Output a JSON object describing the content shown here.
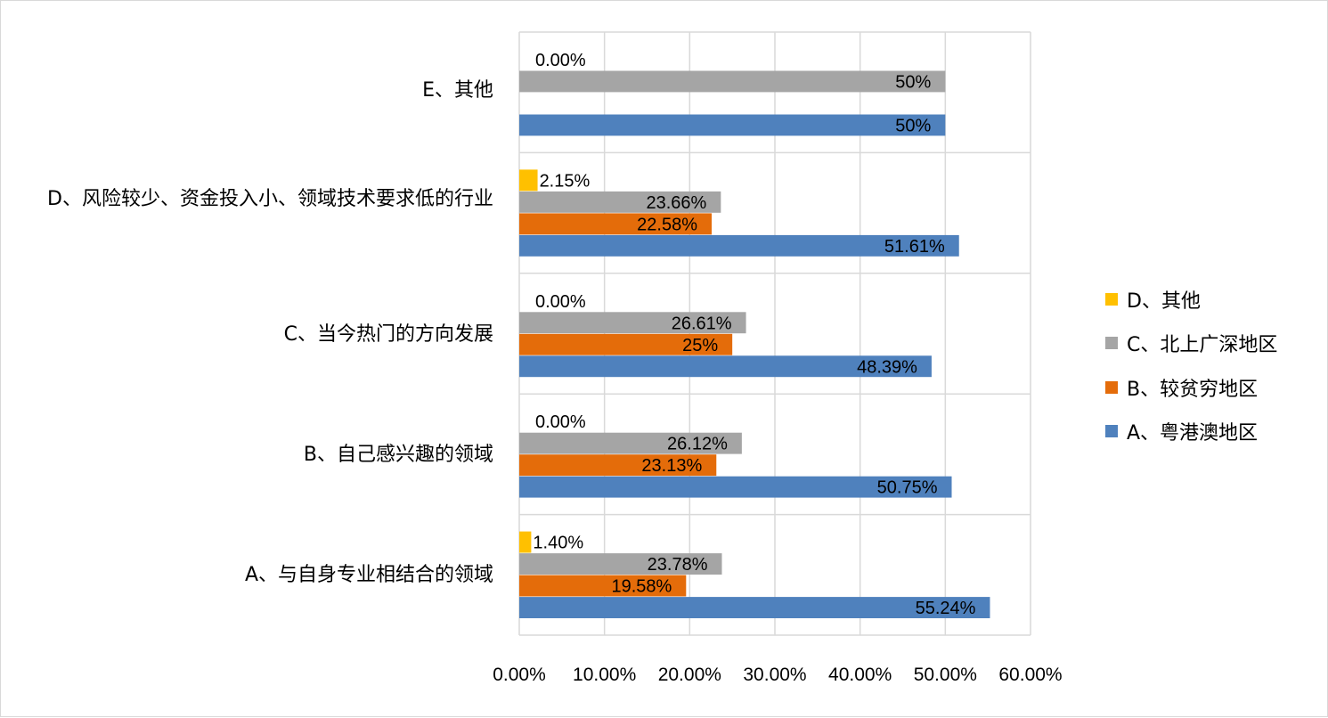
{
  "chart_data": {
    "type": "bar",
    "orientation": "horizontal",
    "categories": [
      "A、与自身专业相结合的领域",
      "B、自己感兴趣的领域",
      "C、当今热门的方向发展",
      "D、风险较少、资金投入小、领域技术要求低的行业",
      "E、其他"
    ],
    "series": [
      {
        "name": "A、粤港澳地区",
        "color": "#4f81bd",
        "values": [
          55.24,
          50.75,
          48.39,
          51.61,
          50
        ],
        "labels": [
          "55.24%",
          "50.75%",
          "48.39%",
          "51.61%",
          "50%"
        ]
      },
      {
        "name": "B、较贫穷地区",
        "color": "#e46c0a",
        "values": [
          19.58,
          23.13,
          25,
          22.58,
          0
        ],
        "labels": [
          "19.58%",
          "23.13%",
          "25%",
          "22.58%",
          null
        ]
      },
      {
        "name": "C、北上广深地区",
        "color": "#a5a5a5",
        "values": [
          23.78,
          26.12,
          26.61,
          23.66,
          50
        ],
        "labels": [
          "23.78%",
          "26.12%",
          "26.61%",
          "23.66%",
          "50%"
        ]
      },
      {
        "name": "D、其他",
        "color": "#ffc000",
        "values": [
          1.4,
          0,
          0,
          2.15,
          0
        ],
        "labels": [
          "1.40%",
          "0.00%",
          "0.00%",
          "2.15%",
          "0.00%"
        ]
      }
    ],
    "xlim": [
      0,
      60
    ],
    "xticks": [
      "0.00%",
      "10.00%",
      "20.00%",
      "30.00%",
      "40.00%",
      "50.00%",
      "60.00%"
    ],
    "grid": true,
    "legend_position": "right"
  }
}
